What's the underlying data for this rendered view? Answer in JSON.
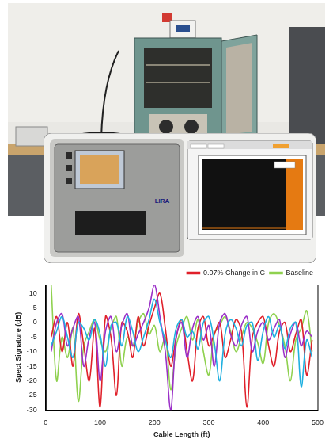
{
  "device_label": "LIRA",
  "chart_data": {
    "type": "line",
    "xlabel": "Cable Length (ft)",
    "ylabel": "Spect Signature (dB)",
    "x": [
      10,
      20,
      30,
      40,
      50,
      60,
      70,
      80,
      90,
      100,
      110,
      120,
      130,
      140,
      150,
      160,
      170,
      180,
      190,
      200,
      210,
      220,
      230,
      240,
      250,
      260,
      270,
      280,
      290,
      300,
      310,
      320,
      330,
      340,
      350,
      360,
      370,
      380,
      390,
      400,
      410,
      420,
      430,
      440,
      450,
      460,
      470,
      480,
      490
    ],
    "series": [
      {
        "color": "#1fb0e0",
        "values": [
          -8,
          -3,
          2,
          -5,
          -12,
          0,
          -2,
          -6,
          1,
          -4,
          -15,
          -1,
          0,
          -8,
          2,
          -3,
          -10,
          -5,
          1,
          8,
          0,
          -6,
          -12,
          -2,
          1,
          -5,
          -3,
          -9,
          0,
          2,
          -7,
          -20,
          -4,
          1,
          -2,
          -8,
          -1,
          0,
          -13,
          -3,
          2,
          -5,
          -1,
          -9,
          -2,
          0,
          -22,
          -6,
          -12
        ]
      },
      {
        "color": "#9b30c8",
        "values": [
          -10,
          0,
          3,
          -8,
          -2,
          2,
          -15,
          -5,
          0,
          -20,
          -3,
          2,
          -10,
          -1,
          3,
          -8,
          -4,
          0,
          5,
          13,
          2,
          -10,
          -30,
          -5,
          0,
          -12,
          -2,
          2,
          -6,
          -1,
          -15,
          0,
          3,
          -4,
          -8,
          -1,
          2,
          -10,
          -3,
          0,
          -6,
          -2,
          1,
          -12,
          -4,
          0,
          -8,
          -3,
          -5
        ]
      },
      {
        "name": "0.07% Change in C",
        "color": "#e0202a",
        "values": [
          -5,
          2,
          -10,
          0,
          -15,
          3,
          -8,
          -20,
          -2,
          -29,
          2,
          -5,
          -25,
          0,
          -3,
          -12,
          2,
          -8,
          -1,
          5,
          10,
          -2,
          -15,
          -5,
          1,
          -10,
          -20,
          -2,
          2,
          -8,
          -4,
          0,
          -12,
          -6,
          1,
          -3,
          -29,
          -5,
          0,
          2,
          -8,
          -15,
          -3,
          0,
          -10,
          -4,
          1,
          -18,
          -6
        ]
      },
      {
        "name": "Baseline",
        "color": "#8fd14f",
        "values": [
          13,
          -20,
          -5,
          -12,
          -2,
          -27,
          -8,
          -3,
          1,
          -6,
          -10,
          -2,
          2,
          -15,
          -5,
          -8,
          0,
          3,
          -4,
          -1,
          -10,
          -5,
          -23,
          -8,
          -2,
          2,
          -6,
          1,
          -10,
          -18,
          -4,
          -1,
          2,
          -3,
          -10,
          -5,
          0,
          -2,
          -7,
          -14,
          0,
          3,
          -1,
          -8,
          -20,
          -6,
          -2,
          4,
          -10
        ]
      }
    ],
    "xlim": [
      0,
      500
    ],
    "xticks": [
      0,
      100,
      200,
      300,
      400,
      500
    ],
    "ylim": [
      -30,
      13
    ],
    "yticks": [
      -30,
      -25,
      -20,
      -15,
      -10,
      -5,
      0,
      5,
      10
    ],
    "grid": false,
    "legend": "top"
  }
}
